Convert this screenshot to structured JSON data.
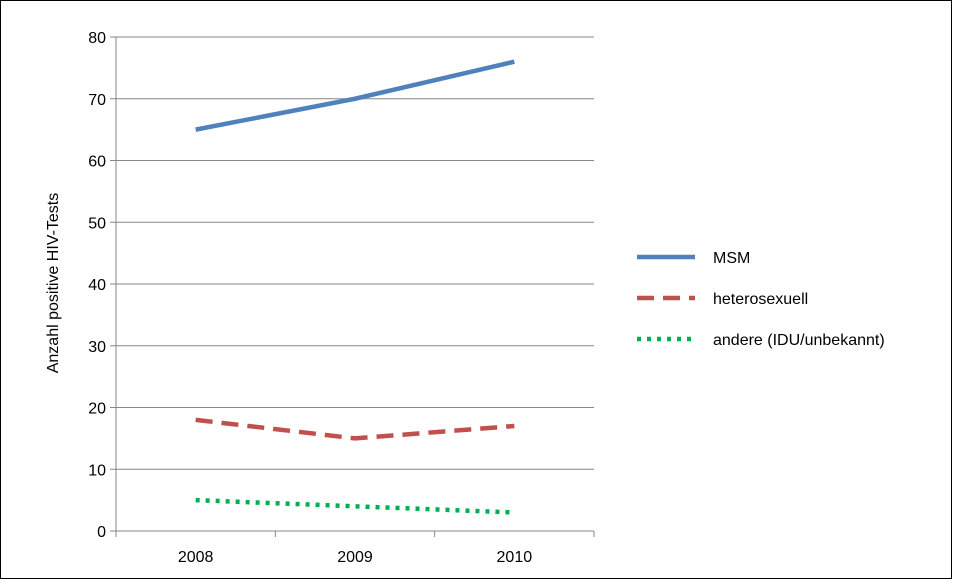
{
  "chart_data": {
    "type": "line",
    "title": "",
    "xlabel": "",
    "ylabel": "Anzahl positive HIV-Tests",
    "categories": [
      "2008",
      "2009",
      "2010"
    ],
    "ylim": [
      0,
      80
    ],
    "yticks": [
      "0",
      "10",
      "20",
      "30",
      "40",
      "50",
      "60",
      "70",
      "80"
    ],
    "grid": "horizontal",
    "legend_position": "right",
    "series": [
      {
        "name": "MSM",
        "values": [
          65,
          70,
          76
        ],
        "color": "#4F81BD",
        "style": "solid"
      },
      {
        "name": "heterosexuell",
        "values": [
          18,
          15,
          17
        ],
        "color": "#C0504D",
        "style": "dashed"
      },
      {
        "name": "andere (IDU/unbekannt)",
        "values": [
          5,
          4,
          3
        ],
        "color": "#00B050",
        "style": "dotted"
      }
    ]
  }
}
